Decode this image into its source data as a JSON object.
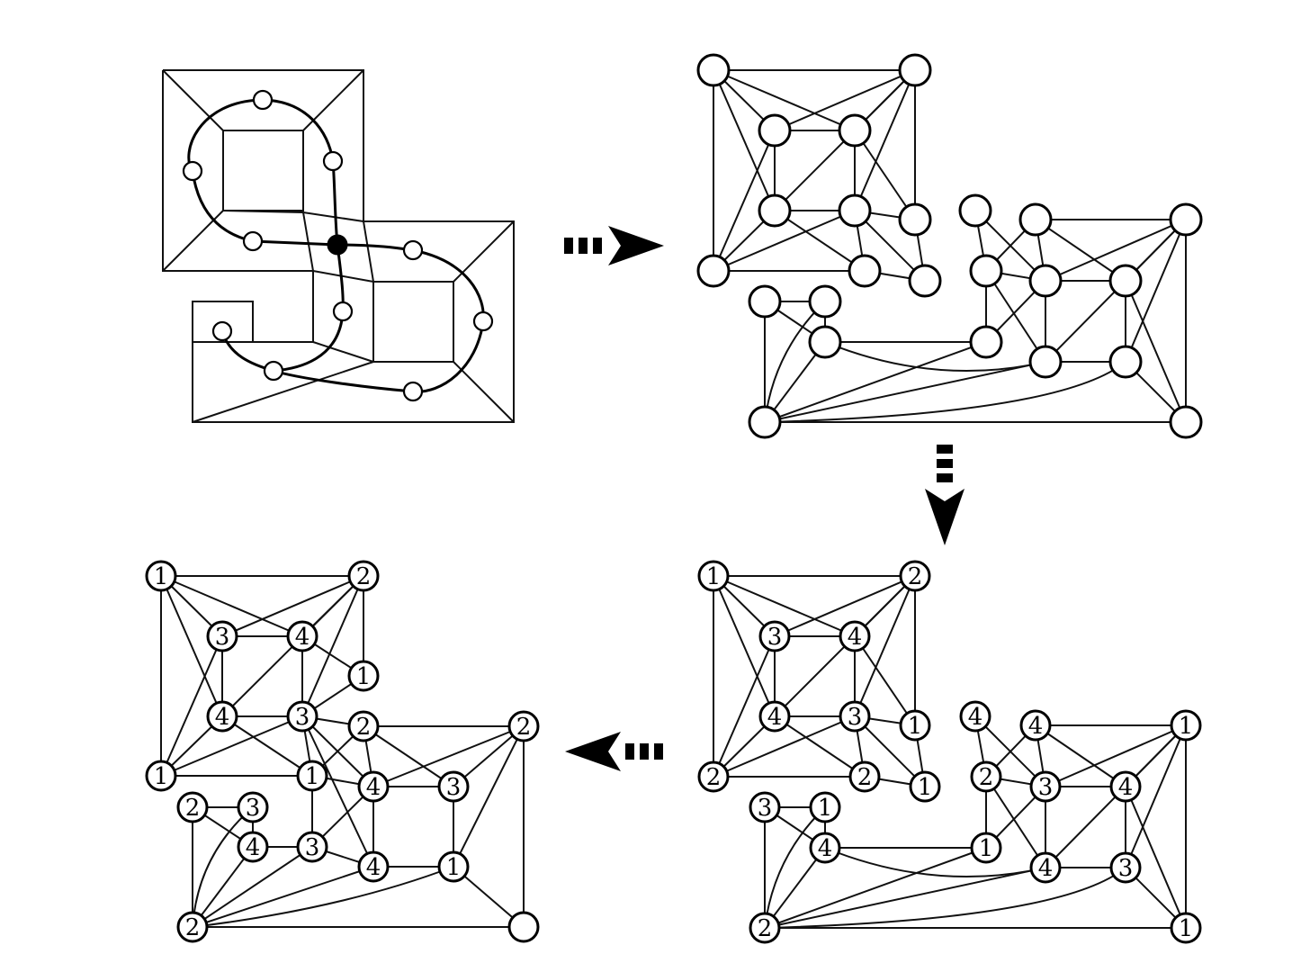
{
  "colors": {
    "stroke": "#000000",
    "node_fill": "#ffffff",
    "background": "#ffffff"
  },
  "panels": {
    "top_right": {
      "nodes": [
        "",
        "",
        "",
        "",
        "",
        "",
        "",
        "",
        "",
        "",
        "",
        "",
        "",
        "",
        "",
        "",
        "",
        "",
        "",
        "",
        "",
        "",
        "",
        ""
      ]
    },
    "bottom_right": {
      "labels": [
        "1",
        "2",
        "3",
        "4",
        "4",
        "3",
        "1",
        "2",
        "2",
        "1",
        "4",
        "4",
        "1",
        "2",
        "3",
        "4",
        "3",
        "1",
        "4",
        "1",
        "4",
        "3",
        "2",
        "1"
      ]
    },
    "bottom_left": {
      "labels": [
        "1",
        "2",
        "3",
        "4",
        "1",
        "4",
        "3",
        "2",
        "1",
        "2",
        "1",
        "4",
        "3",
        "3",
        "4",
        "2",
        "3",
        "4",
        "1",
        "2"
      ]
    }
  },
  "arrows": [
    "right-arrow",
    "down-arrow",
    "left-arrow"
  ]
}
